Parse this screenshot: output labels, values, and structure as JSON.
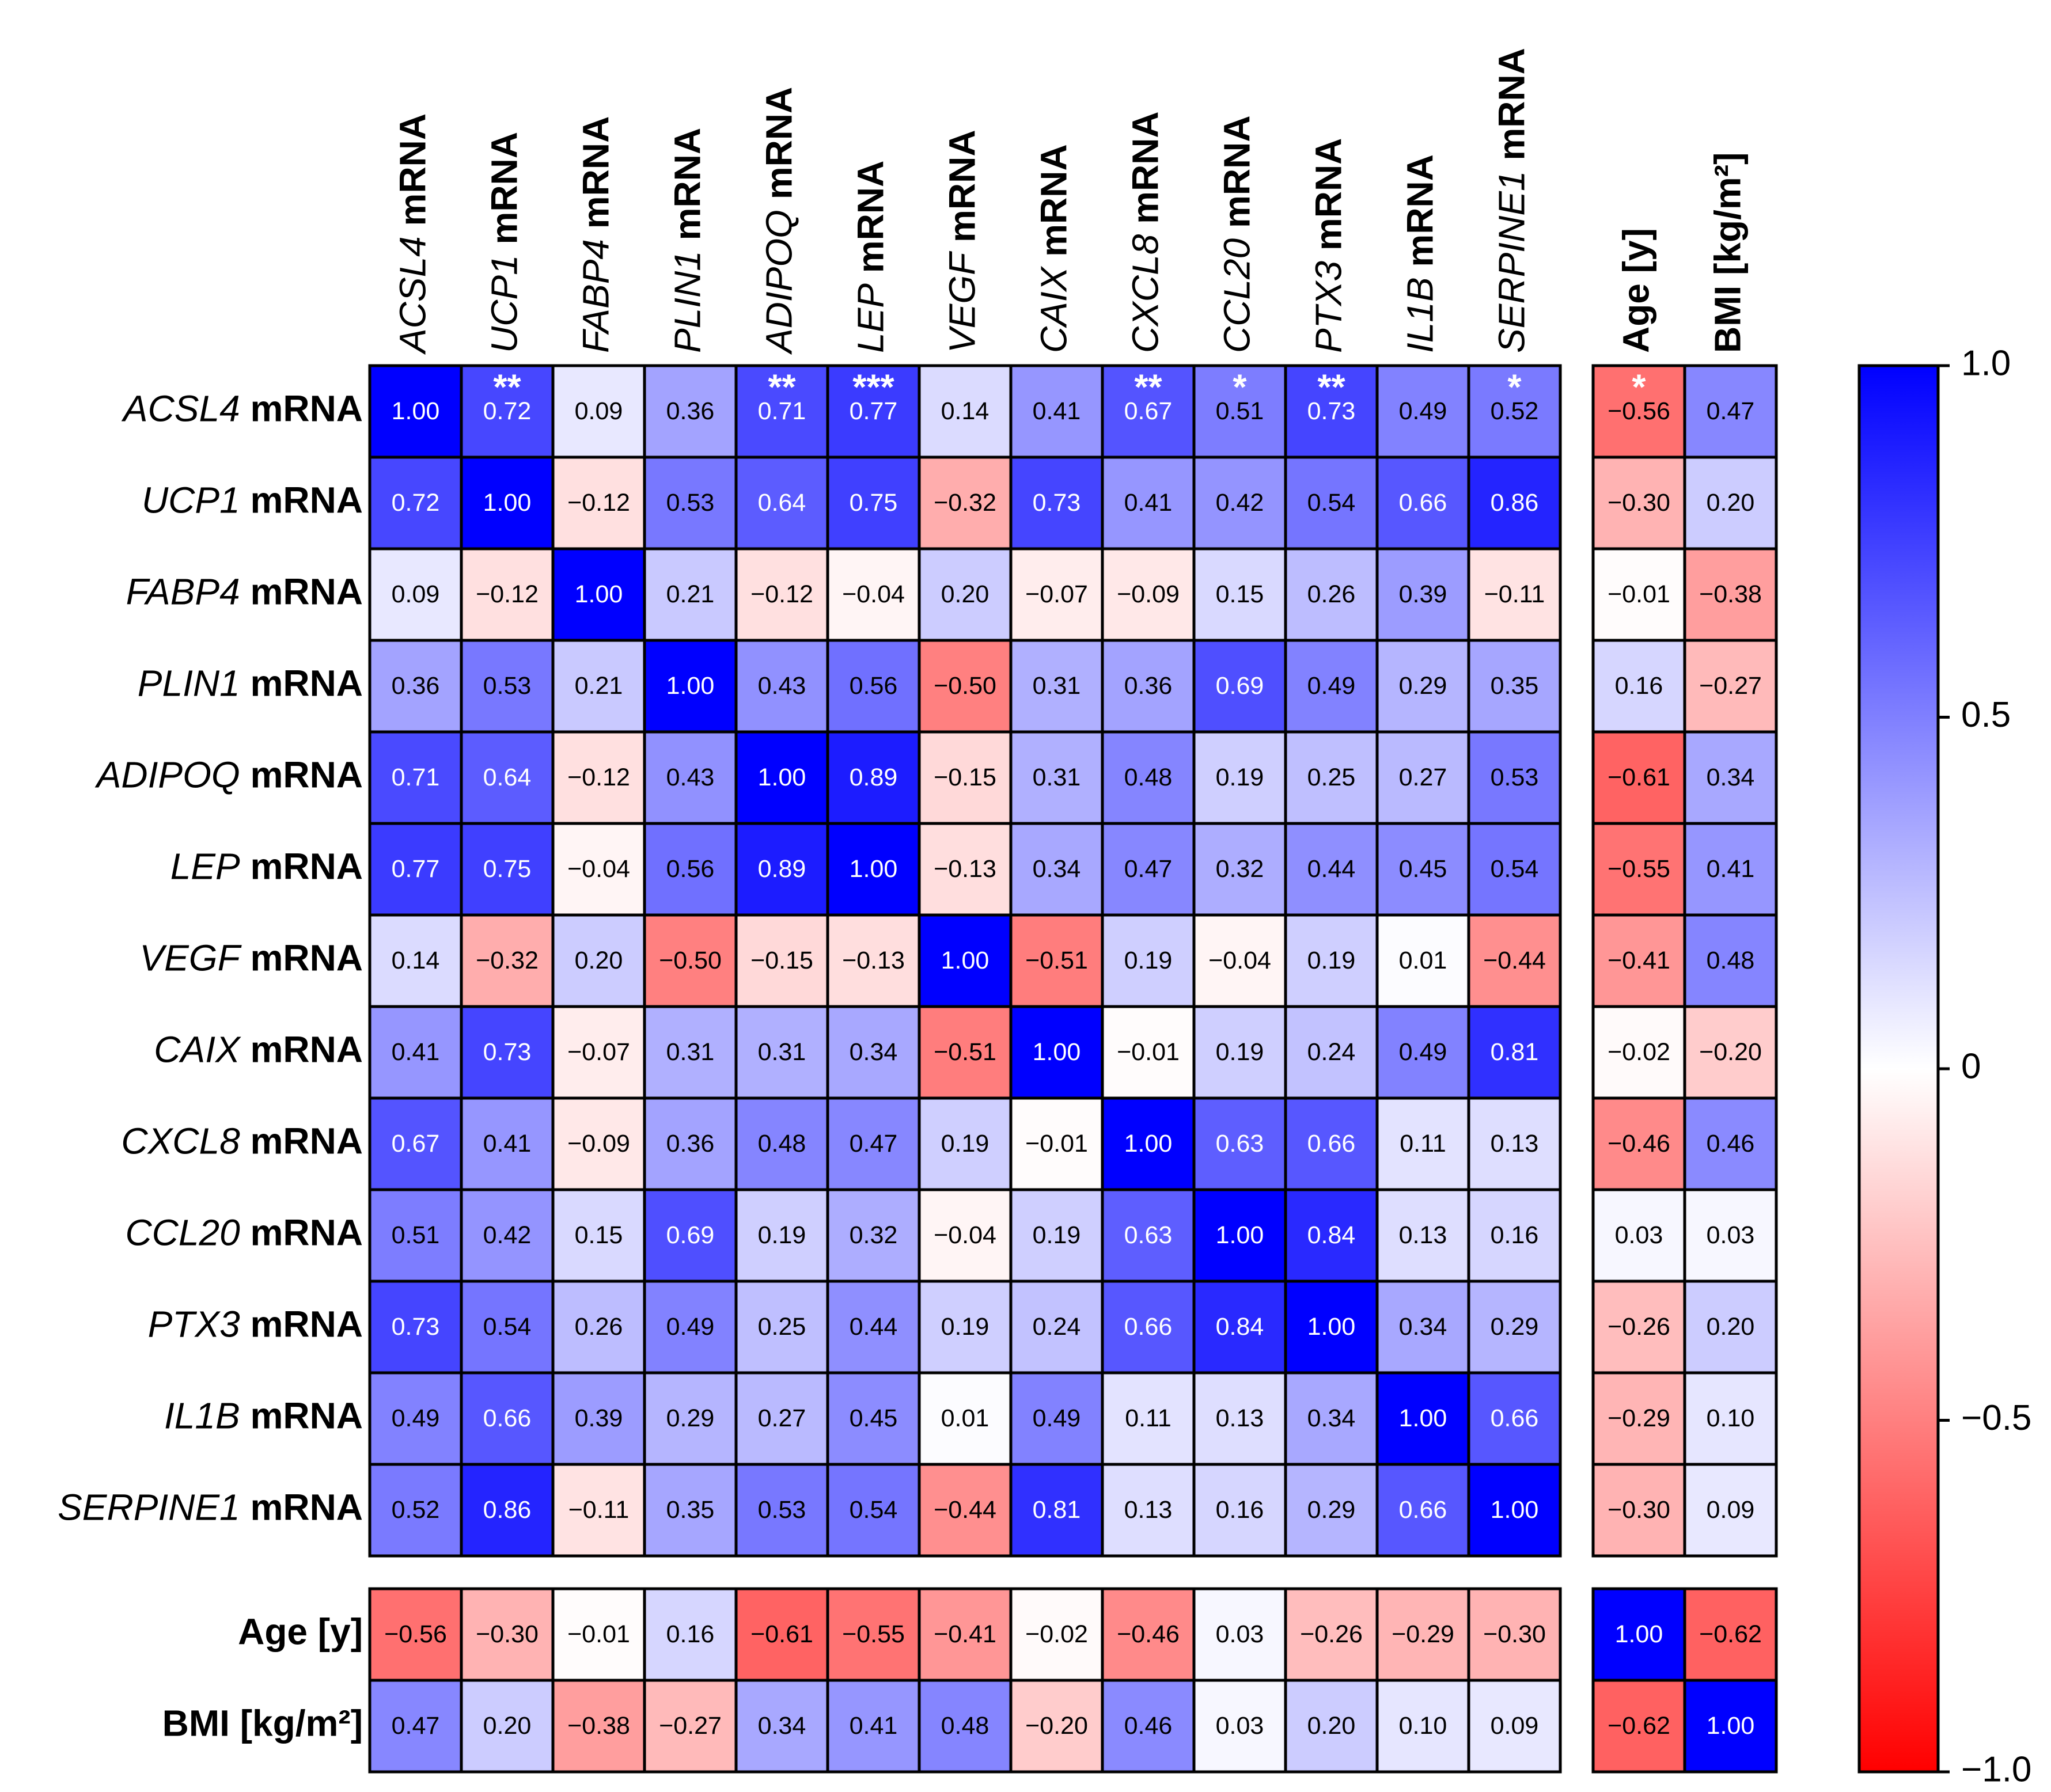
{
  "chart_data": {
    "type": "heatmap",
    "rows": [
      "ACSL4 mRNA",
      "UCP1 mRNA",
      "FABP4 mRNA",
      "PLIN1 mRNA",
      "ADIPOQ mRNA",
      "LEP mRNA",
      "VEGF mRNA",
      "CAIX mRNA",
      "CXCL8 mRNA",
      "CCL20 mRNA",
      "PTX3 mRNA",
      "IL1B mRNA",
      "SERPINE1 mRNA",
      "Age [y]",
      "BMI [kg/m²]"
    ],
    "columns": [
      "ACSL4 mRNA",
      "UCP1 mRNA",
      "FABP4 mRNA",
      "PLIN1 mRNA",
      "ADIPOQ mRNA",
      "LEP mRNA",
      "VEGF mRNA",
      "CAIX mRNA",
      "CXCL8 mRNA",
      "CCL20 mRNA",
      "PTX3 mRNA",
      "IL1B mRNA",
      "SERPINE1 mRNA",
      "Age [y]",
      "BMI [kg/m²]"
    ],
    "values": [
      [
        1.0,
        0.72,
        0.09,
        0.36,
        0.71,
        0.77,
        0.14,
        0.41,
        0.67,
        0.51,
        0.73,
        0.49,
        0.52,
        -0.56,
        0.47
      ],
      [
        0.72,
        1.0,
        -0.12,
        0.53,
        0.64,
        0.75,
        -0.32,
        0.73,
        0.41,
        0.42,
        0.54,
        0.66,
        0.86,
        -0.3,
        0.2
      ],
      [
        0.09,
        -0.12,
        1.0,
        0.21,
        -0.12,
        -0.04,
        0.2,
        -0.07,
        -0.09,
        0.15,
        0.26,
        0.39,
        -0.11,
        -0.01,
        -0.38
      ],
      [
        0.36,
        0.53,
        0.21,
        1.0,
        0.43,
        0.56,
        -0.5,
        0.31,
        0.36,
        0.69,
        0.49,
        0.29,
        0.35,
        0.16,
        -0.27
      ],
      [
        0.71,
        0.64,
        -0.12,
        0.43,
        1.0,
        0.89,
        -0.15,
        0.31,
        0.48,
        0.19,
        0.25,
        0.27,
        0.53,
        -0.61,
        0.34
      ],
      [
        0.77,
        0.75,
        -0.04,
        0.56,
        0.89,
        1.0,
        -0.13,
        0.34,
        0.47,
        0.32,
        0.44,
        0.45,
        0.54,
        -0.55,
        0.41
      ],
      [
        0.14,
        -0.32,
        0.2,
        -0.5,
        -0.15,
        -0.13,
        1.0,
        -0.51,
        0.19,
        -0.04,
        0.19,
        0.01,
        -0.44,
        -0.41,
        0.48
      ],
      [
        0.41,
        0.73,
        -0.07,
        0.31,
        0.31,
        0.34,
        -0.51,
        1.0,
        -0.01,
        0.19,
        0.24,
        0.49,
        0.81,
        -0.02,
        -0.2
      ],
      [
        0.67,
        0.41,
        -0.09,
        0.36,
        0.48,
        0.47,
        0.19,
        -0.01,
        1.0,
        0.63,
        0.66,
        0.11,
        0.13,
        -0.46,
        0.46
      ],
      [
        0.51,
        0.42,
        0.15,
        0.69,
        0.19,
        0.32,
        -0.04,
        0.19,
        0.63,
        1.0,
        0.84,
        0.13,
        0.16,
        0.03,
        0.03
      ],
      [
        0.73,
        0.54,
        0.26,
        0.49,
        0.25,
        0.44,
        0.19,
        0.24,
        0.66,
        0.84,
        1.0,
        0.34,
        0.29,
        -0.26,
        0.2
      ],
      [
        0.49,
        0.66,
        0.39,
        0.29,
        0.27,
        0.45,
        0.01,
        0.49,
        0.11,
        0.13,
        0.34,
        1.0,
        0.66,
        -0.29,
        0.1
      ],
      [
        0.52,
        0.86,
        -0.11,
        0.35,
        0.53,
        0.54,
        -0.44,
        0.81,
        0.13,
        0.16,
        0.29,
        0.66,
        1.0,
        -0.3,
        0.09
      ],
      [
        -0.56,
        -0.3,
        -0.01,
        0.16,
        -0.61,
        -0.55,
        -0.41,
        -0.02,
        -0.46,
        0.03,
        -0.26,
        -0.29,
        -0.3,
        1.0,
        -0.62
      ],
      [
        0.47,
        0.2,
        -0.38,
        -0.27,
        0.34,
        0.41,
        0.48,
        -0.2,
        0.46,
        0.03,
        0.2,
        0.1,
        0.09,
        -0.62,
        1.0
      ]
    ],
    "value_labels": [
      [
        "1.00",
        "0.72",
        "0.09",
        "0.36",
        "0.71",
        "0.77",
        "0.14",
        "0.41",
        "0.67",
        "0.51",
        "0.73",
        "0.49",
        "0.52",
        "−0.56",
        "0.47"
      ],
      [
        "0.72",
        "1.00",
        "−0.12",
        "0.53",
        "0.64",
        "0.75",
        "−0.32",
        "0.73",
        "0.41",
        "0.42",
        "0.54",
        "0.66",
        "0.86",
        "−0.30",
        "0.20"
      ],
      [
        "0.09",
        "−0.12",
        "1.00",
        "0.21",
        "−0.12",
        "−0.04",
        "0.20",
        "−0.07",
        "−0.09",
        "0.15",
        "0.26",
        "0.39",
        "−0.11",
        "−0.01",
        "−0.38"
      ],
      [
        "0.36",
        "0.53",
        "0.21",
        "1.00",
        "0.43",
        "0.56",
        "−0.50",
        "0.31",
        "0.36",
        "0.69",
        "0.49",
        "0.29",
        "0.35",
        "0.16",
        "−0.27"
      ],
      [
        "0.71",
        "0.64",
        "−0.12",
        "0.43",
        "1.00",
        "0.89",
        "−0.15",
        "0.31",
        "0.48",
        "0.19",
        "0.25",
        "0.27",
        "0.53",
        "−0.61",
        "0.34"
      ],
      [
        "0.77",
        "0.75",
        "−0.04",
        "0.56",
        "0.89",
        "1.00",
        "−0.13",
        "0.34",
        "0.47",
        "0.32",
        "0.44",
        "0.45",
        "0.54",
        "−0.55",
        "0.41"
      ],
      [
        "0.14",
        "−0.32",
        "0.20",
        "−0.50",
        "−0.15",
        "−0.13",
        "1.00",
        "−0.51",
        "0.19",
        "−0.04",
        "0.19",
        "0.01",
        "−0.44",
        "−0.41",
        "0.48"
      ],
      [
        "0.41",
        "0.73",
        "−0.07",
        "0.31",
        "0.31",
        "0.34",
        "−0.51",
        "1.00",
        "−0.01",
        "0.19",
        "0.24",
        "0.49",
        "0.81",
        "−0.02",
        "−0.20"
      ],
      [
        "0.67",
        "0.41",
        "−0.09",
        "0.36",
        "0.48",
        "0.47",
        "0.19",
        "−0.01",
        "1.00",
        "0.63",
        "0.66",
        "0.11",
        "0.13",
        "−0.46",
        "0.46"
      ],
      [
        "0.51",
        "0.42",
        "0.15",
        "0.69",
        "0.19",
        "0.32",
        "−0.04",
        "0.19",
        "0.63",
        "1.00",
        "0.84",
        "0.13",
        "0.16",
        "0.03",
        "0.03"
      ],
      [
        "0.73",
        "0.54",
        "0.26",
        "0.49",
        "0.25",
        "0.44",
        "0.19",
        "0.24",
        "0.66",
        "0.84",
        "1.00",
        "0.34",
        "0.29",
        "−0.26",
        "0.20"
      ],
      [
        "0.49",
        "0.66",
        "0.39",
        "0.29",
        "0.27",
        "0.45",
        "0.01",
        "0.49",
        "0.11",
        "0.13",
        "0.34",
        "1.00",
        "0.66",
        "−0.29",
        "0.10"
      ],
      [
        "0.52",
        "0.86",
        "−0.11",
        "0.35",
        "0.53",
        "0.54",
        "−0.44",
        "0.81",
        "0.13",
        "0.16",
        "0.29",
        "0.66",
        "1.00",
        "−0.30",
        "0.09"
      ],
      [
        "−0.56",
        "−0.30",
        "−0.01",
        "0.16",
        "−0.61",
        "−0.55",
        "−0.41",
        "−0.02",
        "−0.46",
        "0.03",
        "−0.26",
        "−0.29",
        "−0.30",
        "1.00",
        "−0.62"
      ],
      [
        "0.47",
        "0.20",
        "−0.38",
        "−0.27",
        "0.34",
        "0.41",
        "0.48",
        "−0.20",
        "0.46",
        "0.03",
        "0.20",
        "0.10",
        "0.09",
        "−0.62",
        "1.00"
      ]
    ],
    "first_row_significance": [
      null,
      "**",
      null,
      null,
      "**",
      "***",
      null,
      null,
      "**",
      "*",
      "**",
      null,
      "*",
      "*",
      null
    ],
    "colorscale": [
      "#ff0000",
      "#ffffff",
      "#0000ff"
    ],
    "zlim": [
      -1,
      1
    ],
    "zticks": [
      {
        "value": 1,
        "label": "1.0"
      },
      0.5,
      0,
      {
        "value": -0.5,
        "label": "−0.5"
      },
      {
        "value": -1,
        "label": "−1.0"
      }
    ]
  }
}
